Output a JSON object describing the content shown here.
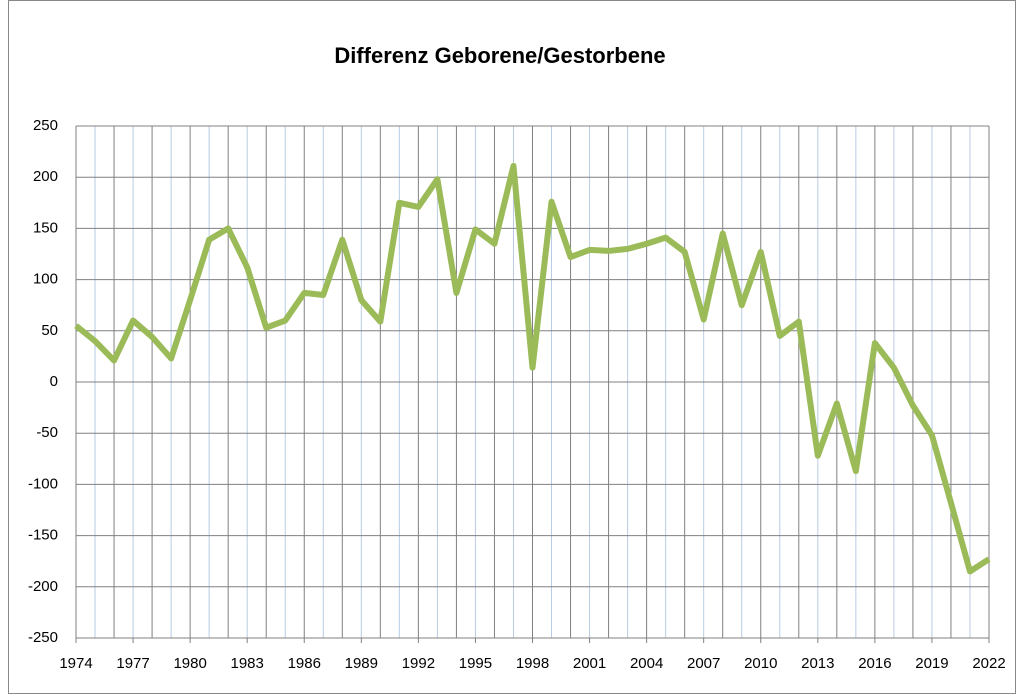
{
  "chart_data": {
    "type": "line",
    "title": "Differenz Geborene/Gestorbene",
    "x": [
      1974,
      1975,
      1976,
      1977,
      1978,
      1979,
      1980,
      1981,
      1982,
      1983,
      1984,
      1985,
      1986,
      1987,
      1988,
      1989,
      1990,
      1991,
      1992,
      1993,
      1994,
      1995,
      1996,
      1997,
      1998,
      1999,
      2000,
      2001,
      2002,
      2003,
      2004,
      2005,
      2006,
      2007,
      2008,
      2009,
      2010,
      2011,
      2012,
      2013,
      2014,
      2015,
      2016,
      2017,
      2018,
      2019,
      2020,
      2021,
      2022
    ],
    "series": [
      {
        "name": "Differenz",
        "color": "#9bbb59",
        "values": [
          55,
          40,
          21,
          60,
          44,
          23,
          80,
          139,
          150,
          112,
          53,
          60,
          87,
          85,
          139,
          80,
          59,
          175,
          171,
          198,
          87,
          149,
          135,
          211,
          14,
          176,
          122,
          129,
          128,
          130,
          135,
          141,
          127,
          61,
          145,
          75,
          127,
          45,
          59,
          -72,
          -21,
          -87,
          38,
          14,
          -23,
          -52,
          -118,
          -185,
          -173
        ]
      }
    ],
    "xlim": [
      1974,
      2022
    ],
    "xticks": [
      1974,
      1977,
      1980,
      1983,
      1986,
      1989,
      1992,
      1995,
      1998,
      2001,
      2004,
      2007,
      2010,
      2013,
      2016,
      2019,
      2022
    ],
    "ylim": [
      -250,
      250
    ],
    "yticks": [
      -250,
      -200,
      -150,
      -100,
      -50,
      0,
      50,
      100,
      150,
      200,
      250
    ],
    "grid": true
  }
}
